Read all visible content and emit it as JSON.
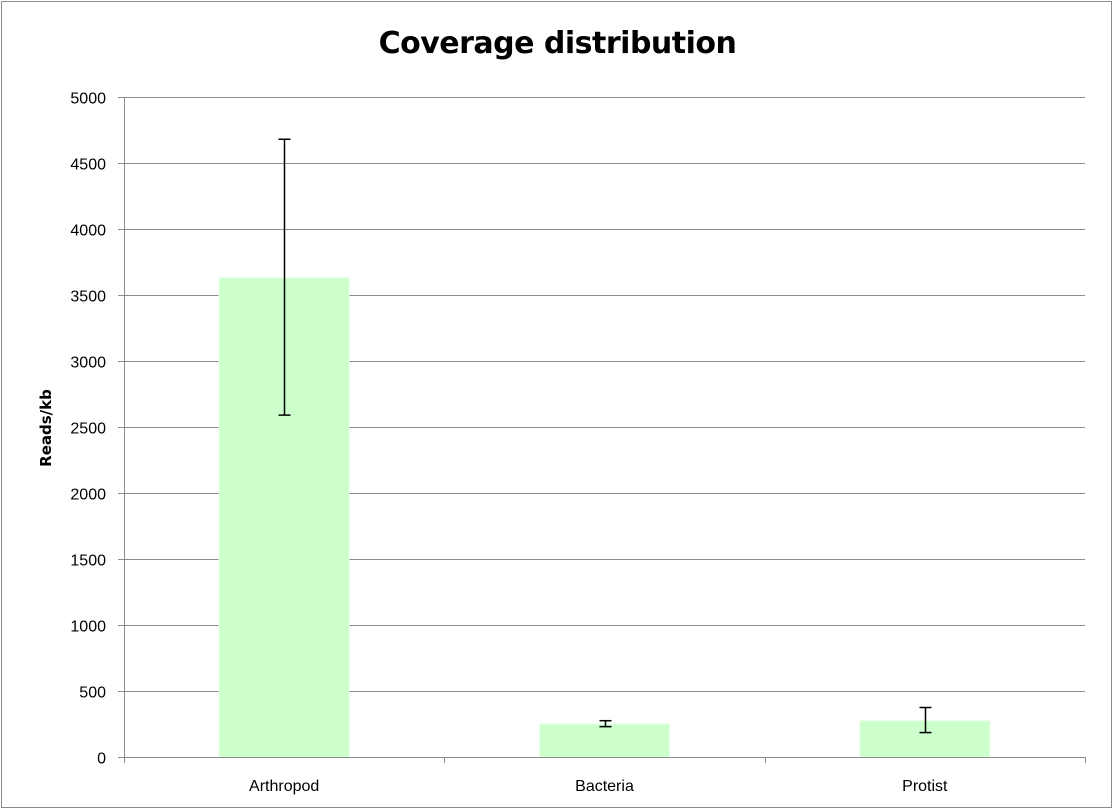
{
  "chart_data": {
    "type": "bar",
    "title": "Coverage distribution",
    "xlabel": "",
    "ylabel": "Reads/kb",
    "categories": [
      "Arthropod",
      "Bacteria",
      "Protist"
    ],
    "values": [
      3630,
      250,
      275
    ],
    "error_low": [
      2590,
      230,
      185
    ],
    "error_high": [
      4680,
      275,
      375
    ],
    "ylim": [
      0,
      5000
    ],
    "yticks": [
      0,
      500,
      1000,
      1500,
      2000,
      2500,
      3000,
      3500,
      4000,
      4500,
      5000
    ],
    "grid": true,
    "legend": "none",
    "bar_color": "#ccffcc",
    "grid_color": "#8c8c8c",
    "axis_color": "#8c8c8c",
    "error_color": "#000000"
  }
}
